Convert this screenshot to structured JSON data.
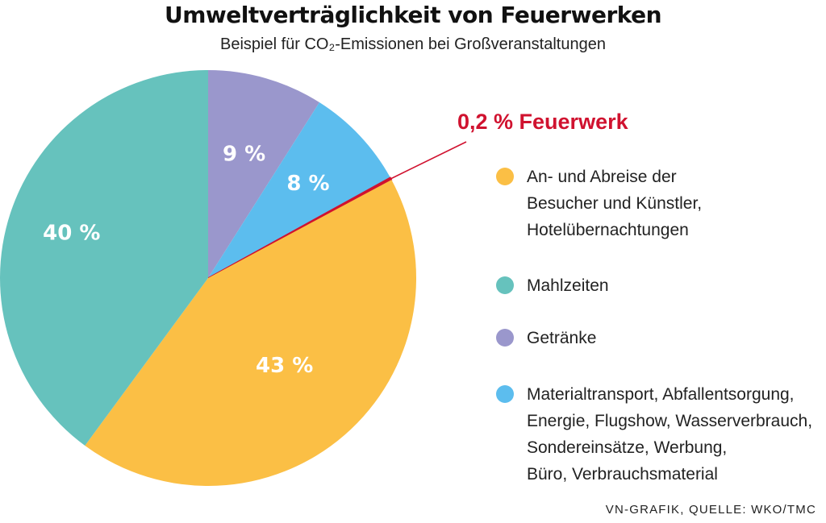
{
  "title": "Umweltverträglichkeit von Feuerwerken",
  "subtitle": "Beispiel für CO₂-Emissionen bei Großveranstaltungen",
  "chart_data": {
    "type": "pie",
    "title": "Umweltverträglichkeit von Feuerwerken",
    "subtitle": "Beispiel für CO₂-Emissionen bei Großveranstaltungen",
    "slices": [
      {
        "label": "Getränke",
        "value": 9,
        "display": "9 %",
        "color": "#9a97cc"
      },
      {
        "label": "Materialtransport, Abfallentsorgung, Energie, Flugshow, Wasserverbrauch, Sondereinsätze, Werbung, Büro, Verbrauchsmaterial",
        "value": 8,
        "display": "8 %",
        "color": "#5cbdee"
      },
      {
        "label": "Feuerwerk",
        "value": 0.2,
        "display": "0,2 %",
        "color": "#d0122f"
      },
      {
        "label": "An- und Abreise der Besucher und Künstler, Hotelübernachtungen",
        "value": 43,
        "display": "43 %",
        "color": "#fbbf45"
      },
      {
        "label": "Mahlzeiten",
        "value": 40,
        "display": "40 %",
        "color": "#66c2bd"
      }
    ],
    "legend_position": "right"
  },
  "callout": {
    "text": "0,2 % Feuerwerk",
    "color": "#d0122f"
  },
  "legend": [
    {
      "lines": [
        "An- und Abreise der",
        "Besucher und Künstler,",
        "Hotelübernachtungen"
      ],
      "color": "#fbbf45",
      "icon": "circle"
    },
    {
      "lines": [
        "Mahlzeiten"
      ],
      "color": "#66c2bd",
      "icon": "circle"
    },
    {
      "lines": [
        "Getränke"
      ],
      "color": "#9a97cc",
      "icon": "circle"
    },
    {
      "lines": [
        "Materialtransport, Abfallentsorgung,",
        "Energie, Flugshow, Wasserverbrauch,",
        "Sondereinsätze, Werbung,",
        "Büro, Verbrauchsmaterial"
      ],
      "color": "#5cbdee",
      "icon": "circle"
    }
  ],
  "source": "VN-GRAFIK, QUELLE: WKO/TMC"
}
